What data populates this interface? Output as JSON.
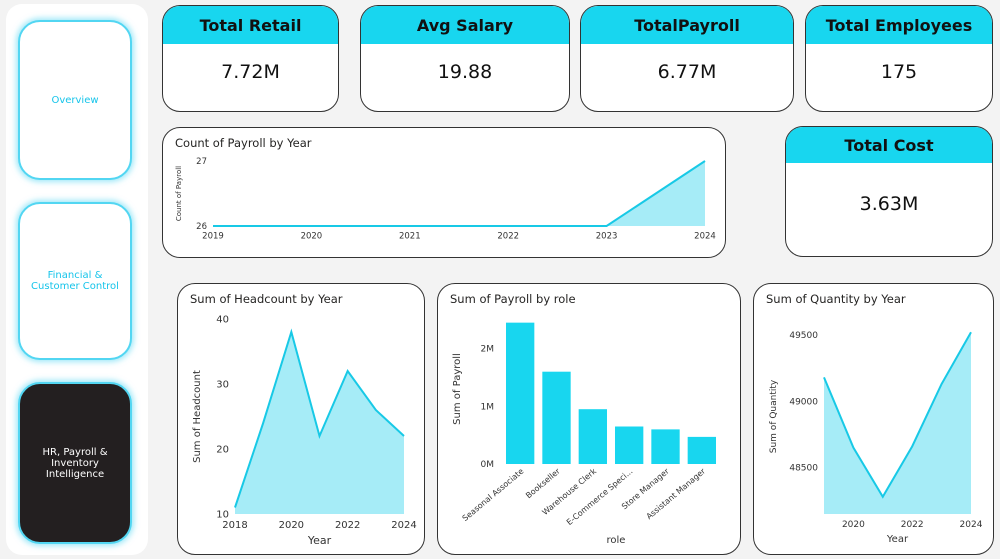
{
  "nav": {
    "overview": "Overview",
    "financial": "Financial & Customer Control",
    "hr": "HR, Payroll & Inventory Intelligence"
  },
  "kpis": {
    "total_retail": {
      "label": "Total Retail",
      "value": "7.72M"
    },
    "avg_salary": {
      "label": "Avg Salary",
      "value": "19.88"
    },
    "total_payroll": {
      "label": "TotalPayroll",
      "value": "6.77M"
    },
    "total_employees": {
      "label": "Total Employees",
      "value": "175"
    },
    "total_cost": {
      "label": "Total Cost",
      "value": "3.63M"
    }
  },
  "colors": {
    "accent": "#18d6ef",
    "area_fill": "#a6ecf7",
    "line": "#18c9e6",
    "active_nav": "#231f20"
  },
  "chart_data": [
    {
      "id": "payroll-count",
      "type": "area",
      "title": "Count of Payroll by Year",
      "xlabel": "",
      "ylabel": "Count of Payroll",
      "x": [
        2019,
        2020,
        2021,
        2022,
        2023,
        2024
      ],
      "values": [
        26,
        26,
        26,
        26,
        26,
        27
      ],
      "yticks": [
        26,
        27
      ],
      "ylim": [
        26,
        27
      ]
    },
    {
      "id": "headcount",
      "type": "area",
      "title": "Sum of Headcount by Year",
      "xlabel": "Year",
      "ylabel": "Sum of Headcount",
      "x": [
        2018,
        2019,
        2020,
        2021,
        2022,
        2023,
        2024
      ],
      "xticks": [
        2018,
        2020,
        2022,
        2024
      ],
      "values": [
        11,
        24,
        38,
        22,
        32,
        26,
        22
      ],
      "yticks": [
        10,
        20,
        30,
        40
      ],
      "ylim": [
        10,
        40
      ]
    },
    {
      "id": "payroll-role",
      "type": "bar",
      "title": "Sum of Payroll by role",
      "xlabel": "role",
      "ylabel": "Sum of Payroll",
      "categories": [
        "Seasonal Associate",
        "Bookseller",
        "Warehouse Clerk",
        "E-Commerce Speci...",
        "Store Manager",
        "Assistant Manager"
      ],
      "values": [
        2.45,
        1.6,
        0.95,
        0.65,
        0.6,
        0.47
      ],
      "yticks": [
        {
          "v": 0,
          "label": "0M"
        },
        {
          "v": 1,
          "label": "1M"
        },
        {
          "v": 2,
          "label": "2M"
        }
      ],
      "ylim": [
        0,
        2.6
      ]
    },
    {
      "id": "quantity",
      "type": "area",
      "title": "Sum of Quantity by Year",
      "xlabel": "Year",
      "ylabel": "Sum of Quantity",
      "x": [
        2019,
        2020,
        2021,
        2022,
        2023,
        2024
      ],
      "xticks": [
        2020,
        2022,
        2024
      ],
      "values": [
        49180,
        48650,
        48280,
        48660,
        49130,
        49520
      ],
      "yticks": [
        48500,
        49000,
        49500
      ],
      "ylim": [
        48150,
        49620
      ]
    }
  ]
}
